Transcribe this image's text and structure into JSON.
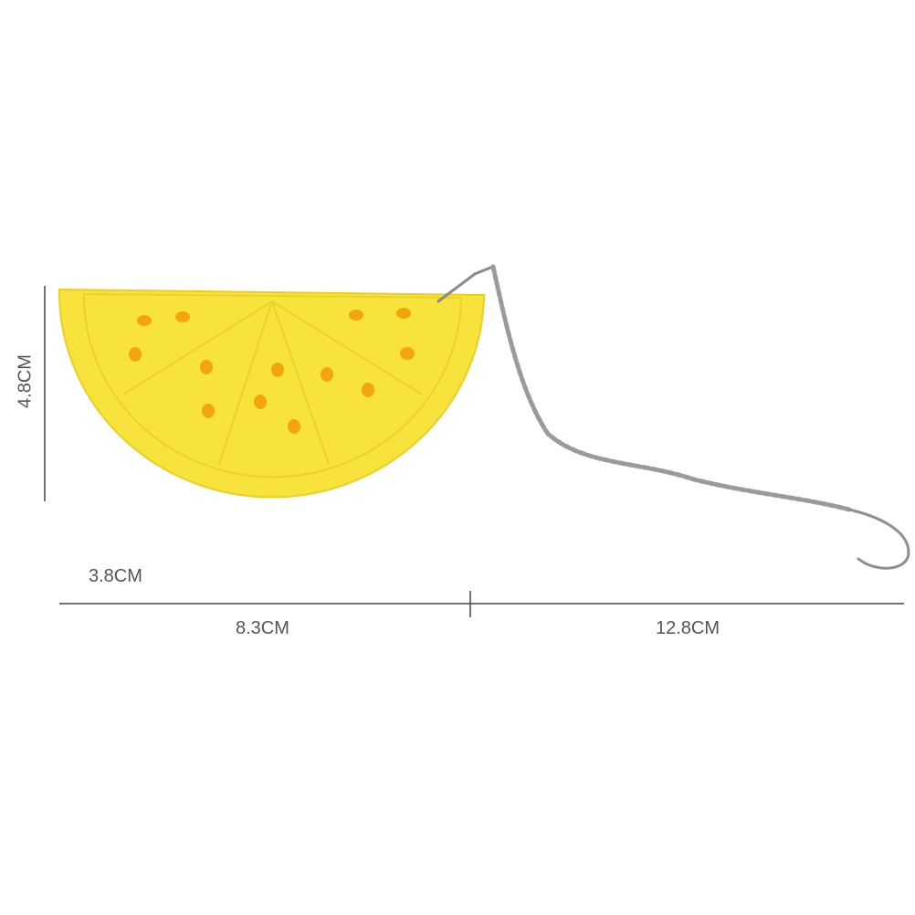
{
  "dimensions": {
    "height_label": "4.8CM",
    "thickness_label": "3.8CM",
    "width_label": "8.3CM",
    "chain_label": "12.8CM"
  },
  "colors": {
    "lemon": "#F8E33C",
    "lemon_edge": "#E9CF22",
    "holes": "#F2A60C",
    "chain": "#9A9A9A",
    "dimension_text": "#555555",
    "dimension_line": "#444444"
  }
}
